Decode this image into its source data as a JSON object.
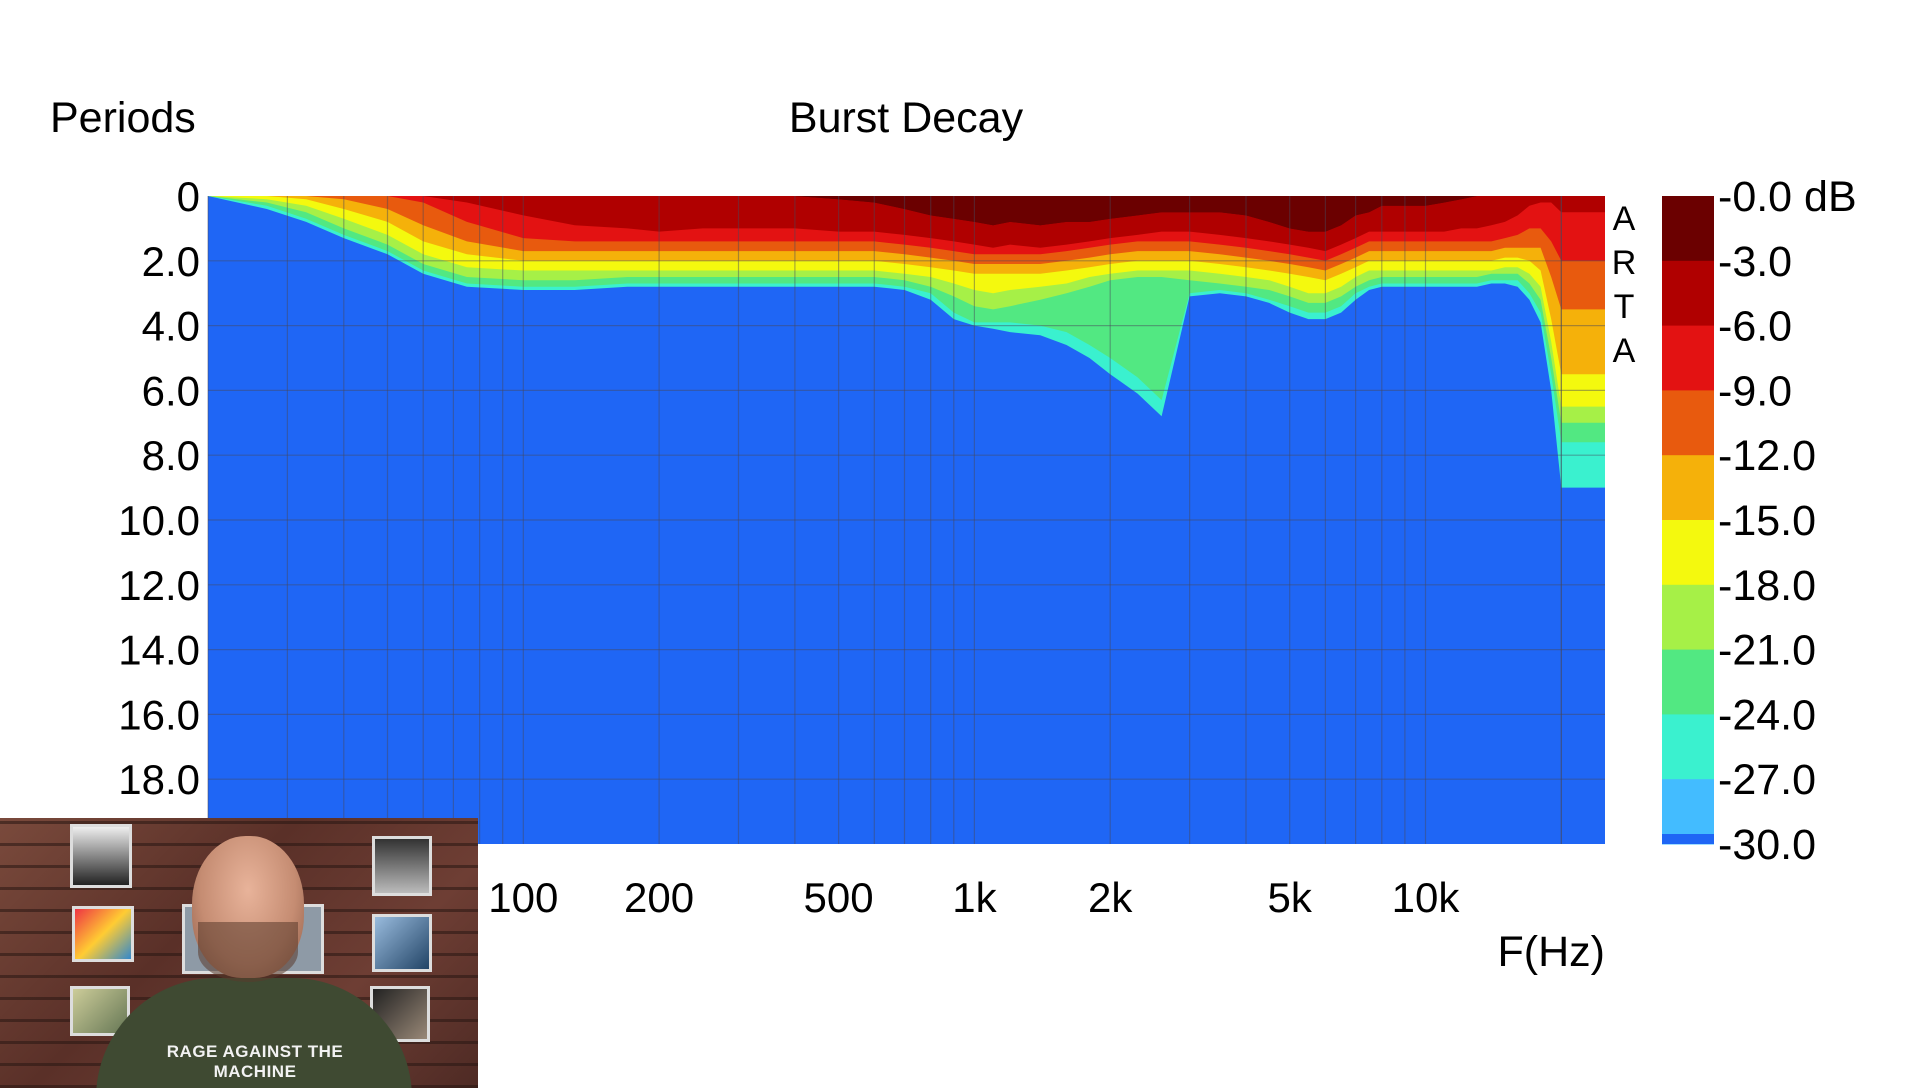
{
  "chart_data": {
    "type": "heatmap",
    "title": "Burst Decay",
    "ylabel": "Periods",
    "xlabel": "F(Hz)",
    "x_scale": "log",
    "xlim": [
      20,
      25000
    ],
    "ylim": [
      0,
      20
    ],
    "y_reversed": true,
    "grid": true,
    "x_ticks": [
      {
        "value": 100,
        "label": "100"
      },
      {
        "value": 200,
        "label": "200"
      },
      {
        "value": 500,
        "label": "500"
      },
      {
        "value": 1000,
        "label": "1k"
      },
      {
        "value": 2000,
        "label": "2k"
      },
      {
        "value": 5000,
        "label": "5k"
      },
      {
        "value": 10000,
        "label": "10k"
      }
    ],
    "y_ticks": [
      {
        "value": 0,
        "label": "0"
      },
      {
        "value": 2,
        "label": "2.0"
      },
      {
        "value": 4,
        "label": "4.0"
      },
      {
        "value": 6,
        "label": "6.0"
      },
      {
        "value": 8,
        "label": "8.0"
      },
      {
        "value": 10,
        "label": "10.0"
      },
      {
        "value": 12,
        "label": "12.0"
      },
      {
        "value": 14,
        "label": "14.0"
      },
      {
        "value": 16,
        "label": "16.0"
      },
      {
        "value": 18,
        "label": "18.0"
      }
    ],
    "colorbar": {
      "placement": "right",
      "unit": "dB",
      "levels": [
        {
          "value": 0.0,
          "label": "-0.0 dB",
          "color": "#6b0000"
        },
        {
          "value": -3.0,
          "label": "-3.0",
          "color": "#b00000"
        },
        {
          "value": -6.0,
          "label": "-6.0",
          "color": "#e31212"
        },
        {
          "value": -9.0,
          "label": "-9.0",
          "color": "#e85a0e"
        },
        {
          "value": -12.0,
          "label": "-12.0",
          "color": "#f5b10a"
        },
        {
          "value": -15.0,
          "label": "-15.0",
          "color": "#f4f90e"
        },
        {
          "value": -18.0,
          "label": "-18.0",
          "color": "#a6f047"
        },
        {
          "value": -21.0,
          "label": "-21.0",
          "color": "#52e882"
        },
        {
          "value": -24.0,
          "label": "-24.0",
          "color": "#3af1cf"
        },
        {
          "value": -27.0,
          "label": "-27.0",
          "color": "#43bcff"
        },
        {
          "value": -30.0,
          "label": "-30.0",
          "color": "#1f66f5"
        }
      ]
    },
    "decay_contours": {
      "x": [
        20,
        27,
        33,
        40,
        50,
        60,
        75,
        100,
        130,
        170,
        200,
        250,
        300,
        400,
        500,
        600,
        700,
        800,
        900,
        1000,
        1100,
        1200,
        1400,
        1600,
        1800,
        2000,
        2300,
        2600,
        3000,
        3500,
        4000,
        4500,
        5000,
        5500,
        6000,
        6500,
        7000,
        7500,
        8000,
        8500,
        9000,
        10000,
        11000,
        12000,
        13000,
        14000,
        15000,
        16000,
        17000,
        18000,
        19000,
        20000,
        22000,
        25000
      ],
      "levels_db": [
        -3,
        -6,
        -9,
        -12,
        -15,
        -18,
        -21,
        -24,
        -27
      ],
      "boundaries_periods": [
        [
          0.0,
          0.0,
          0.0,
          0.0,
          0.0,
          0.0,
          0.0,
          0.0,
          0.0,
          0.0,
          0.0,
          0.0,
          0.0,
          0.0,
          0.1,
          0.2,
          0.4,
          0.6,
          0.7,
          0.8,
          0.9,
          0.8,
          0.9,
          0.8,
          0.8,
          0.7,
          0.6,
          0.5,
          0.5,
          0.5,
          0.6,
          0.8,
          1.0,
          1.1,
          1.1,
          0.9,
          0.6,
          0.5,
          0.3,
          0.3,
          0.3,
          0.3,
          0.2,
          0.1,
          0.0,
          0.0,
          0.0,
          0.0,
          0.0,
          0.0,
          0.0,
          0.0,
          0.0,
          0.0
        ],
        [
          0.0,
          0.0,
          0.0,
          0.0,
          0.0,
          0.0,
          0.2,
          0.6,
          0.9,
          1.0,
          1.1,
          1.0,
          1.0,
          1.0,
          1.1,
          1.1,
          1.2,
          1.3,
          1.4,
          1.5,
          1.6,
          1.5,
          1.6,
          1.5,
          1.4,
          1.3,
          1.2,
          1.1,
          1.1,
          1.2,
          1.3,
          1.4,
          1.5,
          1.6,
          1.7,
          1.5,
          1.3,
          1.1,
          1.1,
          1.1,
          1.1,
          1.1,
          1.1,
          1.0,
          1.0,
          0.9,
          0.8,
          0.6,
          0.3,
          0.2,
          0.2,
          0.5,
          0.5,
          0.5
        ],
        [
          0.0,
          0.0,
          0.0,
          0.0,
          0.0,
          0.2,
          0.8,
          1.3,
          1.4,
          1.4,
          1.4,
          1.4,
          1.4,
          1.4,
          1.4,
          1.4,
          1.5,
          1.6,
          1.7,
          1.8,
          1.8,
          1.8,
          1.8,
          1.7,
          1.6,
          1.5,
          1.4,
          1.4,
          1.4,
          1.5,
          1.6,
          1.7,
          1.8,
          1.9,
          2.0,
          1.8,
          1.6,
          1.4,
          1.4,
          1.4,
          1.4,
          1.4,
          1.4,
          1.4,
          1.4,
          1.4,
          1.3,
          1.2,
          1.0,
          1.0,
          1.4,
          2.0,
          2.0,
          2.0
        ],
        [
          0.0,
          0.0,
          0.0,
          0.1,
          0.4,
          0.9,
          1.4,
          1.7,
          1.7,
          1.7,
          1.7,
          1.7,
          1.7,
          1.7,
          1.7,
          1.7,
          1.8,
          1.9,
          2.0,
          2.1,
          2.1,
          2.1,
          2.1,
          2.0,
          1.9,
          1.8,
          1.7,
          1.7,
          1.7,
          1.8,
          1.9,
          2.0,
          2.1,
          2.2,
          2.3,
          2.1,
          1.9,
          1.7,
          1.7,
          1.7,
          1.7,
          1.7,
          1.7,
          1.7,
          1.7,
          1.7,
          1.6,
          1.6,
          1.6,
          1.6,
          2.5,
          3.5,
          3.5,
          3.5
        ],
        [
          0.0,
          0.0,
          0.1,
          0.4,
          0.8,
          1.4,
          1.8,
          2.0,
          2.0,
          2.0,
          2.0,
          2.0,
          2.0,
          2.0,
          2.0,
          2.0,
          2.1,
          2.2,
          2.3,
          2.4,
          2.4,
          2.4,
          2.4,
          2.3,
          2.2,
          2.1,
          2.0,
          2.0,
          2.0,
          2.1,
          2.2,
          2.3,
          2.4,
          2.5,
          2.6,
          2.4,
          2.2,
          2.0,
          2.0,
          2.0,
          2.0,
          2.0,
          2.0,
          2.0,
          2.0,
          2.0,
          1.9,
          1.9,
          2.0,
          2.3,
          3.8,
          5.5,
          5.5,
          5.5
        ],
        [
          0.0,
          0.1,
          0.3,
          0.7,
          1.2,
          1.8,
          2.2,
          2.3,
          2.3,
          2.3,
          2.3,
          2.3,
          2.3,
          2.3,
          2.3,
          2.3,
          2.4,
          2.5,
          2.7,
          2.9,
          3.0,
          2.9,
          2.8,
          2.7,
          2.5,
          2.4,
          2.3,
          2.3,
          2.3,
          2.4,
          2.5,
          2.6,
          2.8,
          3.0,
          3.0,
          2.8,
          2.5,
          2.3,
          2.3,
          2.3,
          2.3,
          2.3,
          2.3,
          2.3,
          2.3,
          2.3,
          2.2,
          2.2,
          2.4,
          2.8,
          4.5,
          6.5,
          6.5,
          6.5
        ],
        [
          0.0,
          0.2,
          0.5,
          1.0,
          1.5,
          2.1,
          2.5,
          2.6,
          2.6,
          2.5,
          2.5,
          2.5,
          2.5,
          2.5,
          2.5,
          2.5,
          2.6,
          2.8,
          3.1,
          3.4,
          3.5,
          3.4,
          3.2,
          3.0,
          2.8,
          2.6,
          2.5,
          2.5,
          2.6,
          2.7,
          2.8,
          2.9,
          3.1,
          3.3,
          3.3,
          3.1,
          2.8,
          2.6,
          2.5,
          2.5,
          2.5,
          2.5,
          2.5,
          2.5,
          2.5,
          2.4,
          2.4,
          2.4,
          2.7,
          3.2,
          5.0,
          7.0,
          7.0,
          7.0
        ],
        [
          0.0,
          0.3,
          0.7,
          1.2,
          1.7,
          2.3,
          2.7,
          2.8,
          2.8,
          2.7,
          2.7,
          2.7,
          2.7,
          2.7,
          2.7,
          2.7,
          2.8,
          3.0,
          3.6,
          3.9,
          3.9,
          3.9,
          4.0,
          4.2,
          4.6,
          5.0,
          5.6,
          6.3,
          3.0,
          2.9,
          3.0,
          3.2,
          3.4,
          3.6,
          3.6,
          3.4,
          3.0,
          2.8,
          2.7,
          2.7,
          2.7,
          2.7,
          2.7,
          2.7,
          2.7,
          2.6,
          2.6,
          2.6,
          3.0,
          3.6,
          5.5,
          7.6,
          7.6,
          7.6
        ],
        [
          0.0,
          0.4,
          0.8,
          1.3,
          1.8,
          2.4,
          2.8,
          2.9,
          2.9,
          2.8,
          2.8,
          2.8,
          2.8,
          2.8,
          2.8,
          2.8,
          2.9,
          3.2,
          3.8,
          4.0,
          4.1,
          4.2,
          4.3,
          4.6,
          5.0,
          5.5,
          6.1,
          6.8,
          3.1,
          3.0,
          3.1,
          3.3,
          3.6,
          3.8,
          3.8,
          3.6,
          3.2,
          2.9,
          2.8,
          2.8,
          2.8,
          2.8,
          2.8,
          2.8,
          2.8,
          2.7,
          2.7,
          2.8,
          3.2,
          3.9,
          6.0,
          9.0,
          9.0,
          9.0
        ]
      ]
    },
    "side_label": "ARTA"
  }
}
